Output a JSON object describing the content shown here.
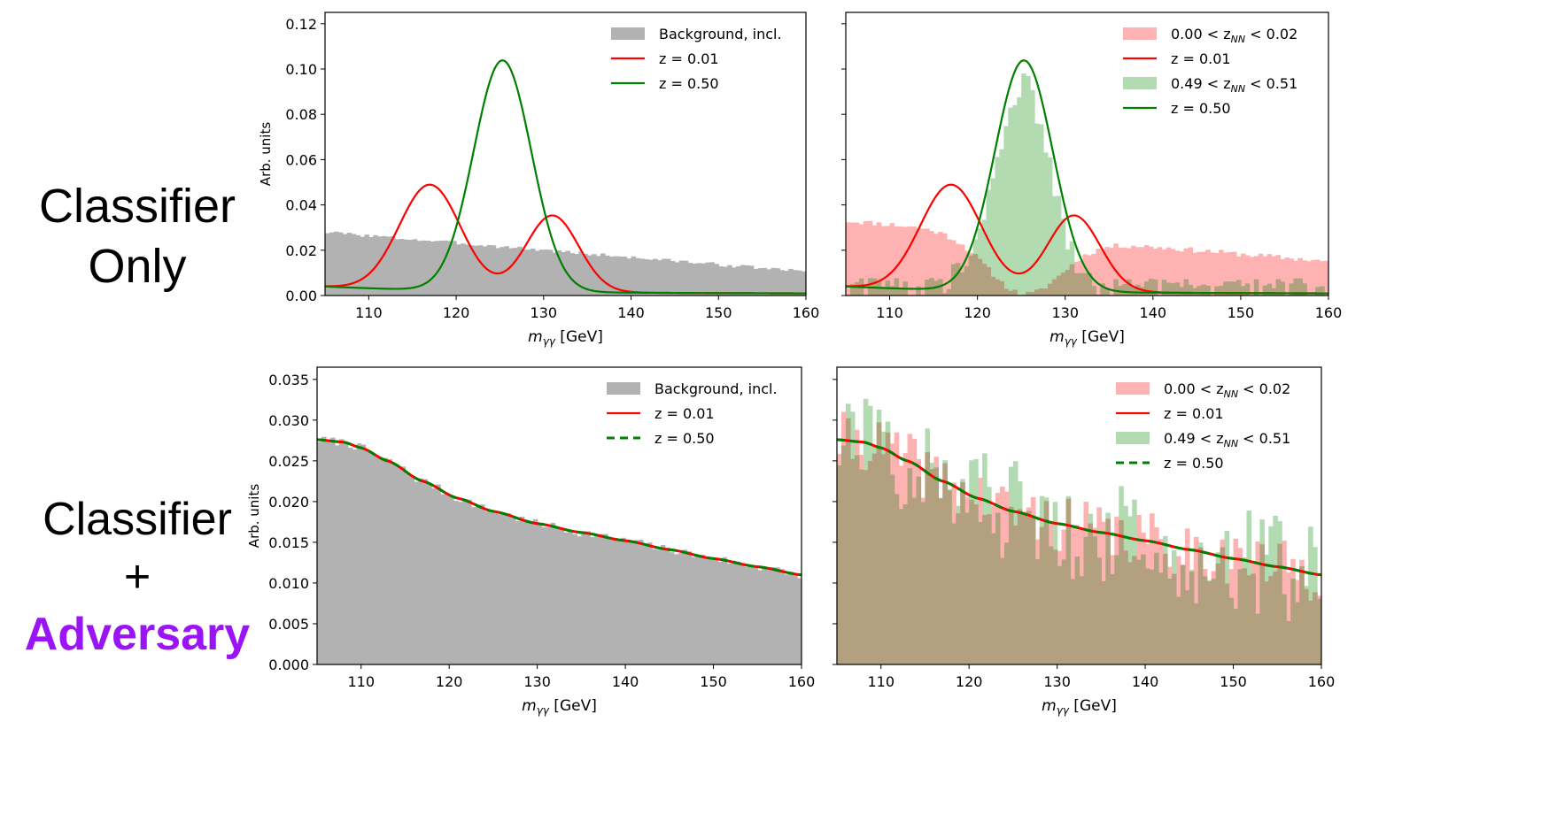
{
  "row_labels": {
    "top": {
      "line1": "Classifier",
      "line2": "Only"
    },
    "bottom": {
      "line1": "Classifier",
      "line2": "+",
      "line3": "Adversary",
      "line3_color": "#9b14f5"
    }
  },
  "colors": {
    "background_hist": "#b2b2b2",
    "low_z_hist": "#ffb2b2",
    "high_z_hist": "#b2dbb2",
    "overlap_hist": "#b2a07e",
    "red_line": "#ff0000",
    "green_line": "#008000"
  },
  "chart_data": [
    {
      "id": "top_left",
      "type": "hist_line",
      "ylabel": "Arb. units",
      "xlabel": "mγγ [GeV]",
      "xlim": [
        105,
        160
      ],
      "ylim": [
        0,
        0.125
      ],
      "xticks": [
        "110",
        "120",
        "130",
        "140",
        "150",
        "160"
      ],
      "yticks": [
        "0.00",
        "0.02",
        "0.04",
        "0.06",
        "0.08",
        "0.10",
        "0.12"
      ],
      "legend": [
        {
          "label": "Background, incl.",
          "kind": "patch",
          "color": "#b2b2b2"
        },
        {
          "label": "z = 0.01",
          "kind": "line",
          "color": "#ff0000"
        },
        {
          "label": "z = 0.50",
          "kind": "line",
          "color": "#008000"
        }
      ],
      "hists": [
        {
          "name": "Background, incl.",
          "kind": "linear_noise",
          "y0": 0.028,
          "y1": 0.0105,
          "noise": 0.0008,
          "seed": 3,
          "color": "#b2b2b2",
          "bins": 110
        }
      ],
      "curves": [
        {
          "name": "z = 0.01",
          "color": "#ff0000",
          "dashed": false,
          "base": {
            "y0": 0.004,
            "y1": 0.0008,
            "tau": 18
          },
          "gaussians": [
            {
              "a": 0.0465,
              "mu": 117,
              "s": 3.5
            },
            {
              "a": 0.0338,
              "mu": 131,
              "s": 3.0
            }
          ]
        },
        {
          "name": "z = 0.50",
          "color": "#008000",
          "dashed": false,
          "base": {
            "y0": 0.004,
            "y1": 0.0008,
            "tau": 18
          },
          "gaussians": [
            {
              "a": 0.102,
              "mu": 125.3,
              "s": 3.3
            }
          ]
        }
      ]
    },
    {
      "id": "top_right",
      "type": "hist_line",
      "ylabel": "",
      "xlabel": "mγγ [GeV]",
      "xlim": [
        105,
        160
      ],
      "ylim": [
        0,
        0.125
      ],
      "xticks": [
        "110",
        "120",
        "130",
        "140",
        "150",
        "160"
      ],
      "yticks": [
        "",
        "",
        "",
        "",
        "",
        "",
        ""
      ],
      "legend": [
        {
          "label": "0.00 < z",
          "sub": "NN",
          "label2": " < 0.02",
          "kind": "patch",
          "color": "#ffb2b2"
        },
        {
          "label": "z = 0.01",
          "kind": "line",
          "color": "#ff0000"
        },
        {
          "label": "0.49 < z",
          "sub": "NN",
          "label2": " < 0.51",
          "kind": "patch",
          "color": "#b2dbb2"
        },
        {
          "label": "z = 0.50",
          "kind": "line",
          "color": "#008000"
        }
      ],
      "hists": [
        {
          "name": "0.00 < zNN < 0.02",
          "kind": "shaped",
          "shape": "lowz",
          "noise": 0.0012,
          "seed": 11,
          "color": "#ffb2b2",
          "bins": 110
        },
        {
          "name": "0.49 < zNN < 0.51",
          "kind": "shaped",
          "shape": "highz",
          "noise": 0.006,
          "seed": 29,
          "color": "#b2dbb2",
          "bins": 110
        }
      ],
      "curves": [
        {
          "name": "z = 0.01",
          "color": "#ff0000",
          "dashed": false,
          "base": {
            "y0": 0.004,
            "y1": 0.0008,
            "tau": 18
          },
          "gaussians": [
            {
              "a": 0.0465,
              "mu": 117,
              "s": 3.5
            },
            {
              "a": 0.0338,
              "mu": 131,
              "s": 3.0
            }
          ]
        },
        {
          "name": "z = 0.50",
          "color": "#008000",
          "dashed": false,
          "base": {
            "y0": 0.004,
            "y1": 0.0008,
            "tau": 18
          },
          "gaussians": [
            {
              "a": 0.102,
              "mu": 125.3,
              "s": 3.3
            }
          ]
        }
      ]
    },
    {
      "id": "bottom_left",
      "type": "hist_line",
      "ylabel": "Arb. units",
      "xlabel": "mγγ [GeV]",
      "xlim": [
        105,
        160
      ],
      "ylim": [
        0,
        0.0365
      ],
      "xticks": [
        "110",
        "120",
        "130",
        "140",
        "150",
        "160"
      ],
      "yticks": [
        "0.000",
        "0.005",
        "0.010",
        "0.015",
        "0.020",
        "0.025",
        "0.030",
        "0.035"
      ],
      "legend": [
        {
          "label": "Background, incl.",
          "kind": "patch",
          "color": "#b2b2b2"
        },
        {
          "label": "z = 0.01",
          "kind": "line",
          "color": "#ff0000"
        },
        {
          "label": "z = 0.50",
          "kind": "dash",
          "color": "#008000"
        }
      ],
      "hists": [
        {
          "name": "Background, incl.",
          "kind": "smooth_noise",
          "noise": 0.0005,
          "seed": 7,
          "color": "#b2b2b2",
          "bins": 110
        }
      ],
      "curves": [
        {
          "name": "z = 0.01",
          "color": "#ff0000",
          "dashed": false,
          "kind": "smooth"
        },
        {
          "name": "z = 0.50",
          "color": "#008000",
          "dashed": true,
          "kind": "smooth"
        }
      ]
    },
    {
      "id": "bottom_right",
      "type": "hist_line",
      "ylabel": "",
      "xlabel": "mγγ [GeV]",
      "xlim": [
        105,
        160
      ],
      "ylim": [
        0,
        0.0365
      ],
      "xticks": [
        "110",
        "120",
        "130",
        "140",
        "150",
        "160"
      ],
      "yticks": [
        "",
        "",
        "",
        "",
        "",
        "",
        "",
        ""
      ],
      "legend": [
        {
          "label": "0.00 < z",
          "sub": "NN",
          "label2": " < 0.02",
          "kind": "patch",
          "color": "#ffb2b2"
        },
        {
          "label": "z = 0.01",
          "kind": "line",
          "color": "#ff0000"
        },
        {
          "label": "0.49 < z",
          "sub": "NN",
          "label2": " < 0.51",
          "kind": "patch",
          "color": "#b2dbb2"
        },
        {
          "label": "z = 0.50",
          "kind": "dash",
          "color": "#008000"
        }
      ],
      "hists": [
        {
          "name": "0.00 < zNN < 0.02",
          "kind": "smooth_noise",
          "noise": 0.0035,
          "seed": 41,
          "color": "#ffb2b2",
          "bins": 110
        },
        {
          "name": "0.49 < zNN < 0.51",
          "kind": "smooth_noise",
          "noise": 0.0065,
          "seed": 57,
          "color": "#b2dbb2",
          "bins": 110
        }
      ],
      "curves": [
        {
          "name": "z = 0.01",
          "color": "#ff0000",
          "dashed": false,
          "kind": "smooth"
        },
        {
          "name": "z = 0.50",
          "color": "#008000",
          "dashed": true,
          "kind": "smooth"
        }
      ]
    }
  ]
}
